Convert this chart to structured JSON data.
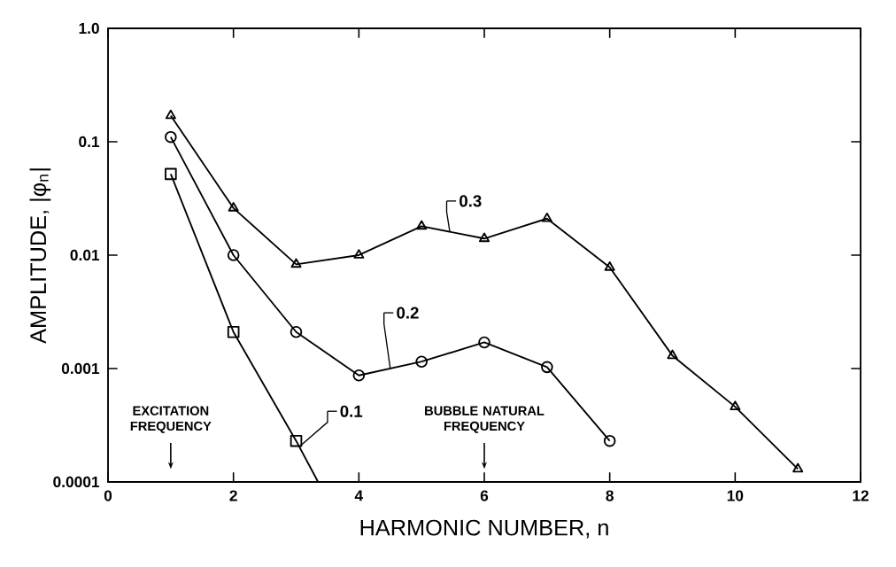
{
  "chart_data": {
    "type": "line",
    "xlabel": "HARMONIC NUMBER,  n",
    "ylabel": "AMPLITUDE,  |φ$_{n}$|",
    "log": "y",
    "grid": false,
    "legend": "center",
    "xlim": [
      0,
      12
    ],
    "xticks": [
      0,
      2,
      4,
      6,
      8,
      10,
      12
    ],
    "ylim": [
      0.0001,
      1
    ],
    "yticks": [
      0.0001,
      0.001,
      0.01,
      0.1,
      {
        "value": 1,
        "label": "1.0"
      }
    ],
    "series": [
      {
        "name": "0.3",
        "color": "#000000",
        "marker": "triangle",
        "x": [
          1,
          2,
          3,
          4,
          5,
          6,
          7,
          8,
          9,
          10,
          11
        ],
        "values": [
          0.17,
          0.026,
          0.0083,
          0.01,
          0.018,
          0.014,
          0.021,
          0.0078,
          0.0013,
          0.00046,
          0.00013
        ]
      },
      {
        "name": "0.2",
        "color": "#000000",
        "marker": "circle",
        "x": [
          1,
          2,
          3,
          4,
          5,
          6,
          7,
          8
        ],
        "values": [
          0.11,
          0.01,
          0.0021,
          0.00087,
          0.00115,
          0.0017,
          0.00103,
          0.00023
        ]
      },
      {
        "name": "0.1",
        "color": "#000000",
        "marker": "square",
        "x": [
          1,
          2,
          3,
          3.35
        ],
        "values": [
          0.052,
          0.0021,
          0.00023,
          0.0001
        ]
      }
    ],
    "annotations": [
      {
        "text": "EXCITATION FREQUENCY",
        "x": 1,
        "y": 0.00013
      },
      {
        "text": "BUBBLE NATURAL FREQUENCY",
        "x": 6,
        "y": 0.00013
      }
    ]
  }
}
